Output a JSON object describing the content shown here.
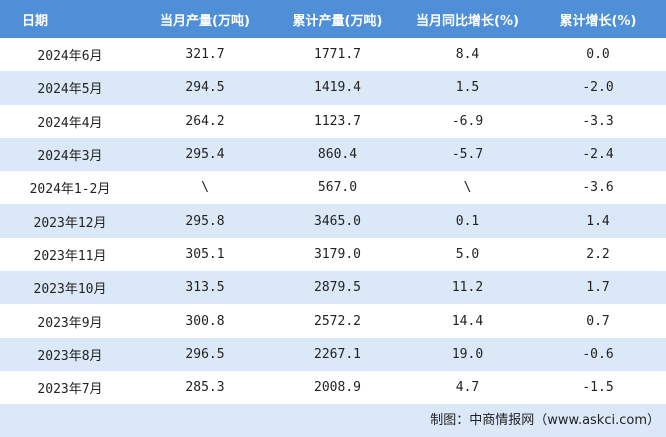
{
  "table": {
    "columns": [
      "日期",
      "当月产量(万吨)",
      "累计产量(万吨)",
      "当月同比增长(%)",
      "累计增长(%)"
    ],
    "rows": [
      [
        "2024年6月",
        "321.7",
        "1771.7",
        "8.4",
        "0.0"
      ],
      [
        "2024年5月",
        "294.5",
        "1419.4",
        "1.5",
        "-2.0"
      ],
      [
        "2024年4月",
        "264.2",
        "1123.7",
        "-6.9",
        "-3.3"
      ],
      [
        "2024年3月",
        "295.4",
        "860.4",
        "-5.7",
        "-2.4"
      ],
      [
        "2024年1-2月",
        "\\",
        "567.0",
        "\\",
        "-3.6"
      ],
      [
        "2023年12月",
        "295.8",
        "3465.0",
        "0.1",
        "1.4"
      ],
      [
        "2023年11月",
        "305.1",
        "3179.0",
        "5.0",
        "2.2"
      ],
      [
        "2023年10月",
        "313.5",
        "2879.5",
        "11.2",
        "1.7"
      ],
      [
        "2023年9月",
        "300.8",
        "2572.2",
        "14.4",
        "0.7"
      ],
      [
        "2023年8月",
        "296.5",
        "2267.1",
        "19.0",
        "-0.6"
      ],
      [
        "2023年7月",
        "285.3",
        "2008.9",
        "4.7",
        "-1.5"
      ]
    ]
  },
  "footer": {
    "source": "制图：中商情报网（www.askci.com）"
  }
}
